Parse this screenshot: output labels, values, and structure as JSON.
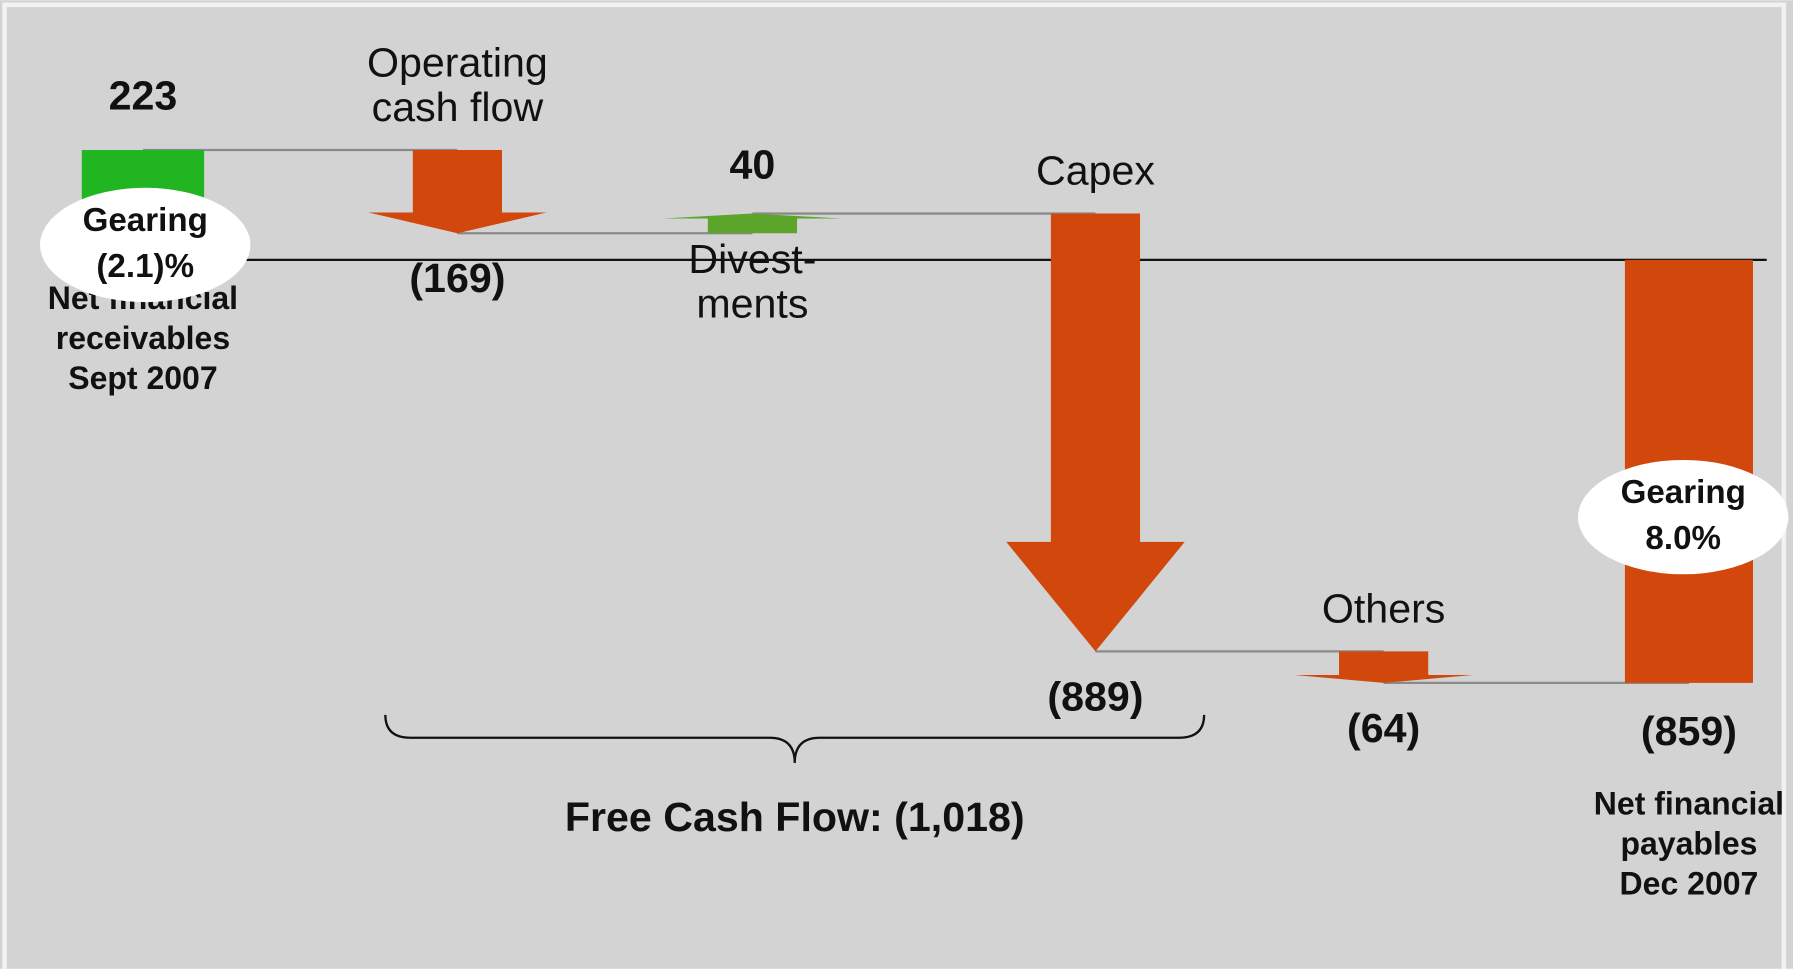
{
  "chart_data": {
    "type": "waterfall",
    "categories": [
      [
        "Net financial",
        "receivables",
        "Sept 2007"
      ],
      [
        "Operating",
        "cash flow"
      ],
      [
        "Divest-",
        "ments"
      ],
      [
        "Capex"
      ],
      [
        "Others"
      ],
      [
        "Net financial",
        "payables",
        "Dec 2007"
      ]
    ],
    "values": [
      223,
      -169,
      40,
      -889,
      -64,
      -859
    ],
    "value_labels": [
      "223",
      "(169)",
      "40",
      "(889)",
      "(64)",
      "(859)"
    ],
    "colors": [
      "#22b522",
      "#d1470c",
      "#5ba52b",
      "#d1470c",
      "#d1470c",
      "#d1470c"
    ],
    "annotations": [
      [
        "Gearing",
        "(2.1)%"
      ],
      [
        "Gearing",
        "8.0%"
      ]
    ],
    "brace_label": "Free Cash Flow: (1,018)"
  }
}
